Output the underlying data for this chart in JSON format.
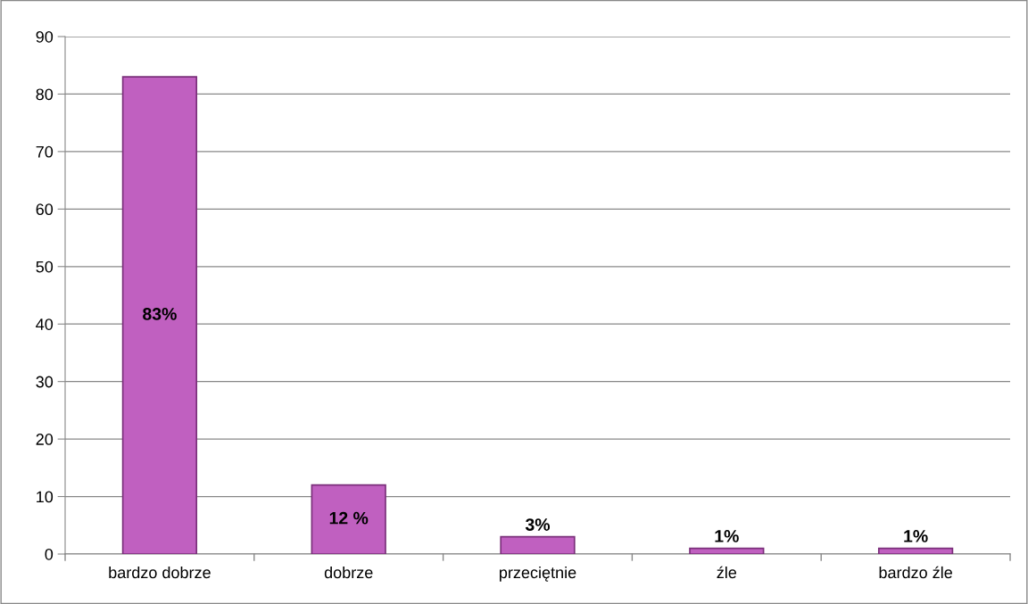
{
  "chart_data": {
    "type": "bar",
    "categories": [
      "bardzo dobrze",
      "dobrze",
      "przeciętnie",
      "źle",
      "bardzo źle"
    ],
    "values": [
      83,
      12,
      3,
      1,
      1
    ],
    "value_labels": [
      "83%",
      "12 %",
      "3%",
      "1%",
      "1%"
    ],
    "color": "#c060c0",
    "ylim": [
      0,
      90
    ],
    "yticks": [
      0,
      10,
      20,
      30,
      40,
      50,
      60,
      70,
      80,
      90
    ],
    "grid": "y",
    "legend": false
  }
}
